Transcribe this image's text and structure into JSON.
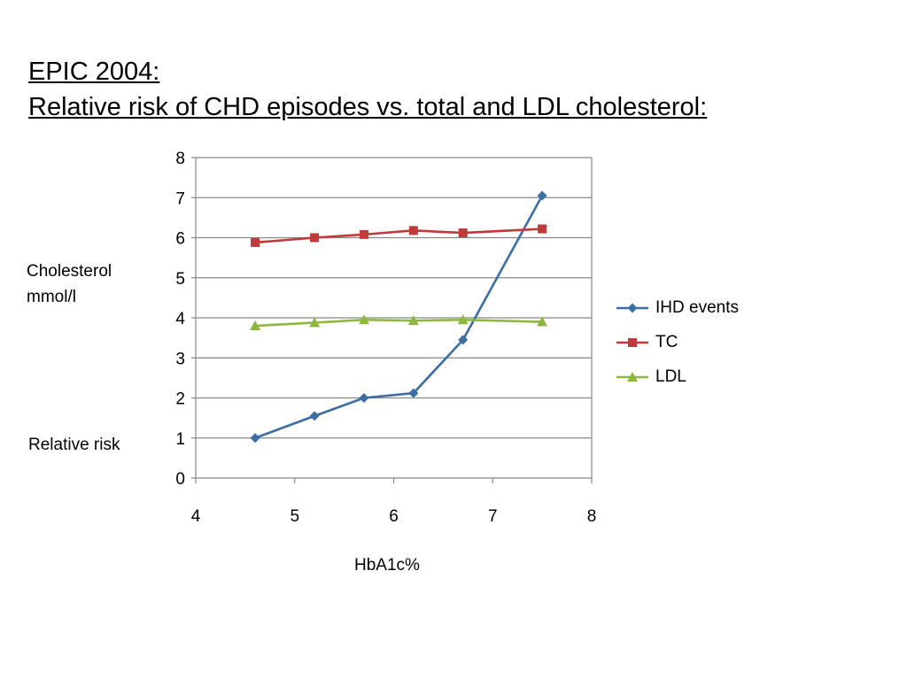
{
  "title": {
    "line1": "EPIC 2004:",
    "line2": "Relative risk of CHD episodes vs. total and LDL cholesterol:"
  },
  "ylabel": {
    "top_line1": "Cholesterol",
    "top_line2": "mmol/l",
    "bottom": "Relative risk"
  },
  "chart_data": {
    "type": "line",
    "title": "",
    "xlabel": "HbA1c%",
    "ylabel": "",
    "xlim": [
      4,
      8
    ],
    "ylim": [
      0,
      8
    ],
    "xticks": [
      "4",
      "5",
      "6",
      "7",
      "8"
    ],
    "yticks": [
      "0",
      "1",
      "2",
      "3",
      "4",
      "5",
      "6",
      "7",
      "8"
    ],
    "grid": "horizontal",
    "legend_position": "right",
    "series": [
      {
        "name": "IHD events",
        "color": "#3a6ea5",
        "marker": "diamond",
        "x": [
          4.6,
          5.2,
          5.7,
          6.2,
          6.7,
          7.5
        ],
        "y": [
          1.0,
          1.55,
          2.0,
          2.12,
          3.45,
          7.05
        ]
      },
      {
        "name": "TC",
        "color": "#c0393b",
        "marker": "square",
        "x": [
          4.6,
          5.2,
          5.7,
          6.2,
          6.7,
          7.5
        ],
        "y": [
          5.88,
          6.0,
          6.08,
          6.18,
          6.12,
          6.22
        ]
      },
      {
        "name": "LDL",
        "color": "#8db83b",
        "marker": "triangle",
        "x": [
          4.6,
          5.2,
          5.7,
          6.2,
          6.7,
          7.5
        ],
        "y": [
          3.8,
          3.88,
          3.95,
          3.93,
          3.95,
          3.9
        ]
      }
    ]
  }
}
